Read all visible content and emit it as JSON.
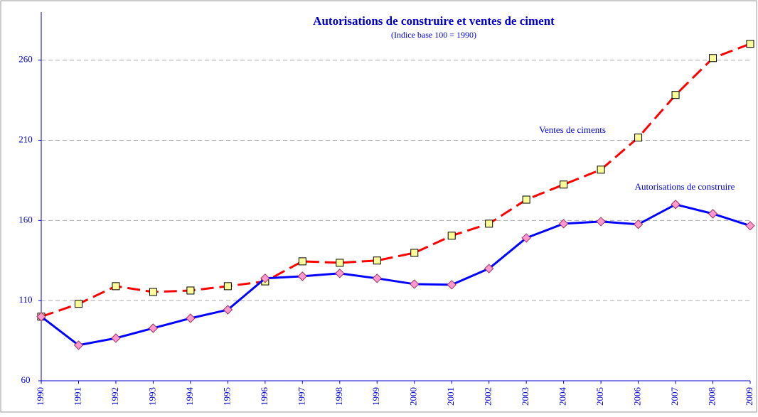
{
  "chart_data": {
    "type": "line",
    "title": "Autorisations de construire et ventes de ciment",
    "subtitle": "(Indice base 100 = 1990)",
    "categories": [
      "1990",
      "1991",
      "1992",
      "1993",
      "1994",
      "1995",
      "1996",
      "1997",
      "1998",
      "1999",
      "2000",
      "2001",
      "2002",
      "2003",
      "2004",
      "2005",
      "2006",
      "2007",
      "2008",
      "2009"
    ],
    "series": [
      {
        "name": "Ventes de ciments",
        "color": "#ff0000",
        "marker": "square",
        "dashed": true,
        "values": [
          100,
          108,
          119,
          115.4,
          116.3,
          119,
          122,
          134.5,
          133.6,
          135,
          139.8,
          150.5,
          158,
          173,
          182.4,
          191.7,
          211.7,
          238.3,
          261.3,
          270.2
        ]
      },
      {
        "name": "Autorisations de construire",
        "color": "#0000ff",
        "marker": "diamond",
        "dashed": false,
        "values": [
          100,
          82.2,
          86.6,
          92.8,
          99,
          104.3,
          123.9,
          125.2,
          127,
          123.9,
          120.3,
          119.9,
          130,
          149.1,
          158,
          159.3,
          157.6,
          170,
          164.2,
          156.7
        ]
      }
    ],
    "ylim": [
      60,
      290
    ],
    "yticks": [
      60,
      110,
      160,
      210,
      260
    ],
    "grid": true
  }
}
